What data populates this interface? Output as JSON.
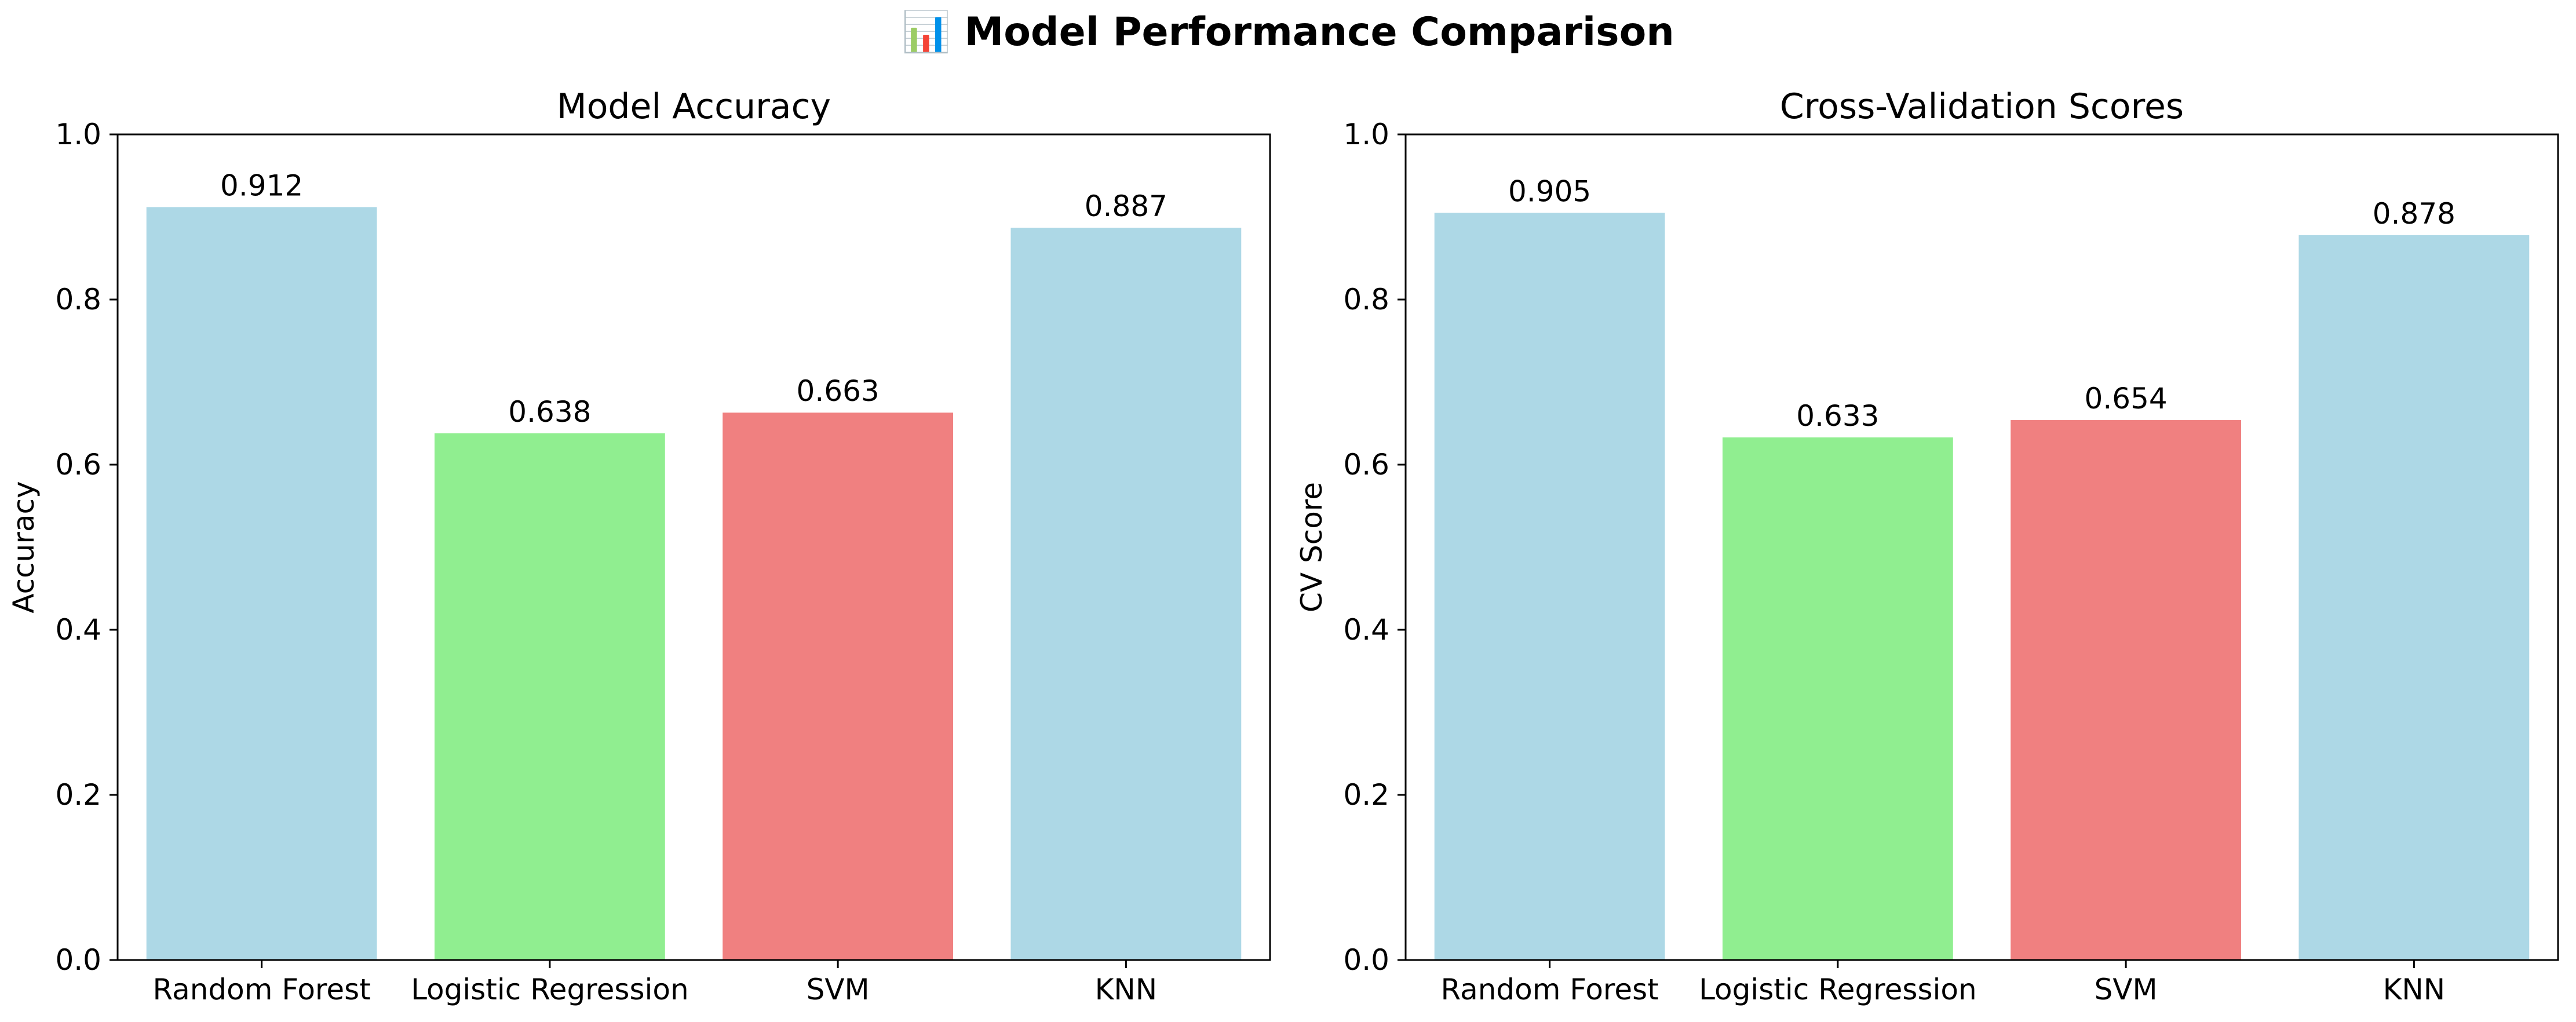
{
  "figure": {
    "title": "📊 Model Performance Comparison"
  },
  "chart_data": [
    {
      "type": "bar",
      "title": "Model Accuracy",
      "xlabel": "",
      "ylabel": "Accuracy",
      "categories": [
        "Random Forest",
        "Logistic Regression",
        "SVM",
        "KNN"
      ],
      "values": [
        0.912,
        0.638,
        0.663,
        0.887
      ],
      "value_labels": [
        "0.912",
        "0.638",
        "0.663",
        "0.887"
      ],
      "colors": [
        "#add8e6",
        "#90ee90",
        "#f08080",
        "#add8e6"
      ],
      "ylim": [
        0,
        1.0
      ],
      "yticks": [
        0.0,
        0.2,
        0.4,
        0.6,
        0.8,
        1.0
      ],
      "ytick_labels": [
        "0.0",
        "0.2",
        "0.4",
        "0.6",
        "0.8",
        "1.0"
      ],
      "grid": false,
      "legend": "none"
    },
    {
      "type": "bar",
      "title": "Cross-Validation Scores",
      "xlabel": "",
      "ylabel": "CV Score",
      "categories": [
        "Random Forest",
        "Logistic Regression",
        "SVM",
        "KNN"
      ],
      "values": [
        0.905,
        0.633,
        0.654,
        0.878
      ],
      "value_labels": [
        "0.905",
        "0.633",
        "0.654",
        "0.878"
      ],
      "colors": [
        "#add8e6",
        "#90ee90",
        "#f08080",
        "#add8e6"
      ],
      "ylim": [
        0,
        1.0
      ],
      "yticks": [
        0.0,
        0.2,
        0.4,
        0.6,
        0.8,
        1.0
      ],
      "ytick_labels": [
        "0.0",
        "0.2",
        "0.4",
        "0.6",
        "0.8",
        "1.0"
      ],
      "grid": false,
      "legend": "none"
    }
  ]
}
